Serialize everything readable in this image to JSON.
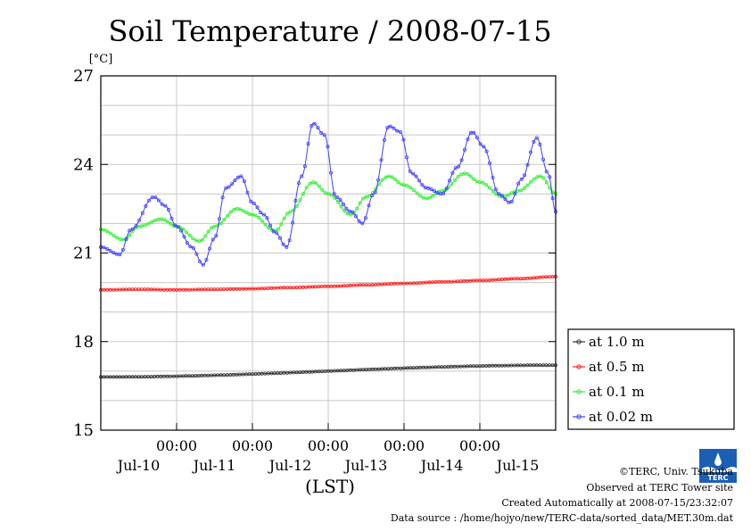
{
  "chart_data": {
    "type": "line",
    "title": "Soil Temperature / 2008-07-15",
    "ylabel": "[°C]",
    "xlabel": "(LST)",
    "ylim": [
      15,
      27
    ],
    "yticks": [
      "15",
      "18",
      "21",
      "24",
      "27"
    ],
    "xlim": [
      0,
      6
    ],
    "xticks_time": [
      "00:00",
      "00:00",
      "00:00",
      "00:00",
      "00:00"
    ],
    "xticks_date": [
      "Jul-10",
      "Jul-11",
      "Jul-12",
      "Jul-13",
      "Jul-14",
      "Jul-15"
    ],
    "grid": true,
    "legend_position": "right",
    "series": [
      {
        "name": "at 1.0 m",
        "color": "#333333",
        "x": [
          0,
          6
        ],
        "y": [
          16.8,
          17.2
        ]
      },
      {
        "name": "at 0.5 m",
        "color": "#ff2020",
        "x": [
          0,
          0.5,
          1,
          1.5,
          2,
          2.5,
          3,
          3.5,
          4,
          4.5,
          5,
          5.5,
          6
        ],
        "y": [
          19.75,
          19.77,
          19.75,
          19.77,
          19.79,
          19.83,
          19.87,
          19.92,
          19.97,
          20.02,
          20.07,
          20.13,
          20.2
        ]
      },
      {
        "name": "at 0.1 m",
        "color": "#33ee33",
        "x": [
          0,
          0.3,
          0.5,
          0.8,
          1,
          1.3,
          1.5,
          1.8,
          2,
          2.3,
          2.5,
          2.8,
          3,
          3.3,
          3.5,
          3.8,
          4,
          4.3,
          4.5,
          4.8,
          5,
          5.3,
          5.5,
          5.8,
          6
        ],
        "y": [
          21.8,
          21.45,
          21.9,
          22.15,
          21.9,
          21.4,
          21.9,
          22.5,
          22.3,
          21.75,
          22.4,
          23.4,
          23.0,
          22.3,
          22.9,
          23.6,
          23.3,
          22.85,
          23.1,
          23.7,
          23.4,
          22.9,
          23.1,
          23.6,
          23.0
        ]
      },
      {
        "name": "at 0.02 m",
        "color": "#4040ff",
        "x": [
          0,
          0.25,
          0.4,
          0.7,
          0.85,
          1.0,
          1.2,
          1.35,
          1.5,
          1.65,
          1.85,
          2.0,
          2.15,
          2.3,
          2.45,
          2.65,
          2.8,
          2.95,
          3.1,
          3.3,
          3.45,
          3.6,
          3.8,
          3.95,
          4.1,
          4.3,
          4.5,
          4.7,
          4.9,
          5.05,
          5.25,
          5.4,
          5.55,
          5.75,
          5.9,
          6.0
        ],
        "y": [
          21.2,
          20.95,
          21.8,
          22.9,
          22.6,
          21.9,
          21.2,
          20.6,
          21.5,
          23.2,
          23.6,
          22.7,
          22.3,
          21.7,
          21.2,
          23.6,
          25.4,
          25.0,
          22.9,
          22.4,
          22.0,
          23.0,
          25.3,
          25.1,
          23.7,
          23.2,
          23.0,
          23.9,
          25.1,
          24.6,
          23.0,
          22.7,
          23.5,
          24.9,
          23.7,
          22.4
        ]
      }
    ]
  },
  "footer": {
    "copyright": "©TERC, Univ. Tsukuba",
    "observed": "Observed at TERC Tower site",
    "created": "Created Automatically at 2008-07-15/23:32:07",
    "source": "Data source : /home/hojyo/new/TERC-data/sorted_data/MET.30m.dat"
  },
  "logo": {
    "text": "TERC",
    "color": "#1a5fb4"
  }
}
